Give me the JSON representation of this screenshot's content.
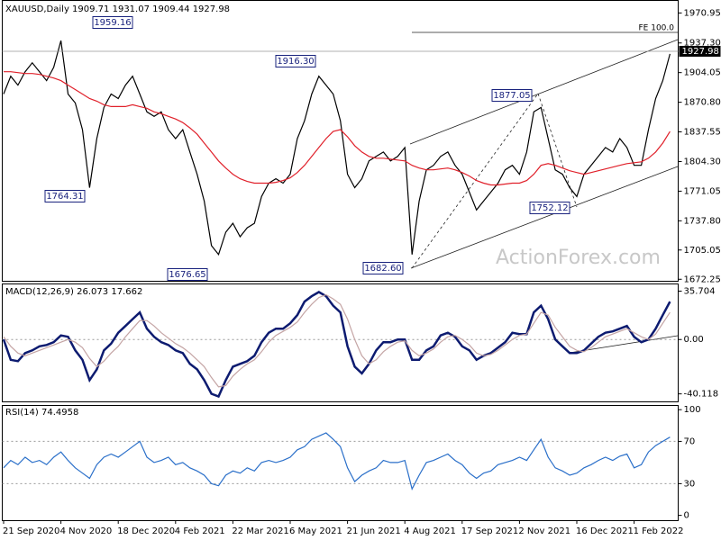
{
  "watermark": "ActionForex.com",
  "chart_data": [
    {
      "type": "line",
      "title": "XAUUSD,Daily",
      "ohlc": [
        1909.71,
        1931.07,
        1909.44,
        1927.98
      ],
      "ylim": [
        1670,
        1985
      ],
      "yticks": [
        1970.95,
        {
          "value": 1937.3,
          "label": "1937.30"
        },
        1904.05,
        {
          "value": 1870.8,
          "label": "1870.80"
        },
        1837.55,
        {
          "value": 1804.3,
          "label": "1804.30"
        },
        1771.05,
        {
          "value": 1737.8,
          "label": "1737.80"
        },
        1705.05,
        1672.25
      ],
      "annotations": [
        1959.16,
        1764.31,
        1676.65,
        {
          "value": 1916.3,
          "label": "1916.30"
        },
        {
          "value": 1682.6,
          "label": "1682.60"
        },
        1877.05,
        1752.12
      ],
      "fe_label": "FE 100.0",
      "series": [
        {
          "color": "#000000",
          "values": [
            1880,
            1900,
            1890,
            1905,
            1915,
            1905,
            1895,
            1910,
            1940,
            1880,
            1870,
            1840,
            1775,
            1830,
            1865,
            1880,
            1875,
            1890,
            1900,
            1880,
            1860,
            1855,
            1860,
            1840,
            1830,
            1840,
            1815,
            1790,
            1760,
            1710,
            1700,
            1725,
            1735,
            1720,
            1730,
            1735,
            1765,
            1780,
            1785,
            1780,
            1790,
            1830,
            1850,
            1880,
            1900,
            1890,
            1880,
            1850,
            1790,
            1775,
            1785,
            1805,
            1810,
            1815,
            1805,
            1810,
            1820,
            1700,
            1760,
            1795,
            1800,
            1810,
            1815,
            1800,
            1790,
            1770,
            1750,
            1760,
            1770,
            1780,
            1795,
            1800,
            1790,
            1815,
            1860,
            1865,
            1830,
            1795,
            1790,
            1775,
            1765,
            1790,
            1800,
            1810,
            1820,
            1815,
            1830,
            1820,
            1800,
            1800,
            1840,
            1875,
            1895,
            1925
          ]
        },
        {
          "color": "#e0202a",
          "values": [
            1905,
            1905,
            1904,
            1903,
            1903,
            1902,
            1900,
            1898,
            1895,
            1890,
            1885,
            1880,
            1875,
            1872,
            1868,
            1866,
            1866,
            1866,
            1868,
            1866,
            1864,
            1860,
            1858,
            1855,
            1852,
            1848,
            1842,
            1835,
            1825,
            1815,
            1805,
            1797,
            1790,
            1785,
            1782,
            1780,
            1780,
            1780,
            1781,
            1783,
            1786,
            1792,
            1800,
            1810,
            1820,
            1830,
            1838,
            1840,
            1832,
            1822,
            1815,
            1810,
            1808,
            1808,
            1807,
            1806,
            1805,
            1800,
            1797,
            1795,
            1795,
            1796,
            1797,
            1795,
            1792,
            1788,
            1783,
            1780,
            1778,
            1778,
            1779,
            1780,
            1780,
            1783,
            1790,
            1800,
            1802,
            1800,
            1797,
            1794,
            1792,
            1790,
            1792,
            1794,
            1796,
            1798,
            1800,
            1802,
            1803,
            1804,
            1808,
            1815,
            1825,
            1838
          ]
        }
      ]
    },
    {
      "type": "line",
      "title": "MACD(12,26,9)",
      "readings": [
        26.073,
        17.662
      ],
      "ylim": [
        -46,
        41
      ],
      "yticks": [
        35.704,
        {
          "value": 0,
          "label": "0.00"
        },
        -40.118
      ],
      "grid": "inner",
      "series": [
        {
          "color": "#0d1b70",
          "values": [
            0,
            -15,
            -16,
            -10,
            -8,
            -5,
            -4,
            -2,
            3,
            2,
            -8,
            -15,
            -30,
            -22,
            -8,
            -3,
            5,
            10,
            15,
            20,
            8,
            2,
            -2,
            -4,
            -8,
            -10,
            -18,
            -22,
            -30,
            -40,
            -42,
            -30,
            -20,
            -18,
            -16,
            -12,
            -2,
            5,
            8,
            8,
            12,
            18,
            28,
            32,
            35,
            32,
            25,
            20,
            -5,
            -20,
            -25,
            -18,
            -8,
            -2,
            -2,
            0,
            0,
            -15,
            -15,
            -8,
            -5,
            3,
            5,
            2,
            -5,
            -8,
            -15,
            -12,
            -10,
            -6,
            -2,
            5,
            4,
            4,
            20,
            25,
            15,
            0,
            -5,
            -10,
            -10,
            -8,
            -3,
            2,
            5,
            6,
            8,
            10,
            2,
            -2,
            0,
            8,
            18,
            28
          ]
        },
        {
          "color": "#c4a4a4",
          "values": [
            2,
            -5,
            -10,
            -12,
            -10,
            -8,
            -6,
            -4,
            -2,
            0,
            -2,
            -6,
            -14,
            -20,
            -16,
            -10,
            -5,
            2,
            8,
            14,
            14,
            10,
            5,
            1,
            -3,
            -6,
            -10,
            -15,
            -20,
            -28,
            -35,
            -34,
            -27,
            -22,
            -18,
            -15,
            -9,
            -2,
            3,
            6,
            9,
            13,
            20,
            26,
            31,
            33,
            30,
            26,
            15,
            0,
            -12,
            -18,
            -15,
            -9,
            -5,
            -2,
            -1,
            -8,
            -12,
            -10,
            -7,
            -2,
            2,
            3,
            0,
            -4,
            -10,
            -12,
            -11,
            -8,
            -4,
            0,
            3,
            4,
            12,
            20,
            18,
            9,
            2,
            -5,
            -8,
            -9,
            -6,
            -2,
            2,
            4,
            6,
            8,
            5,
            2,
            0,
            4,
            12,
            20
          ]
        }
      ]
    },
    {
      "type": "line",
      "title": "RSI(14)",
      "readings": [
        74.4958
      ],
      "ylim": [
        -5,
        104
      ],
      "yticks": [
        100,
        70,
        30,
        0
      ],
      "grid": "inner",
      "categories": [
        "21 Sep 2020",
        null,
        null,
        null,
        null,
        null,
        null,
        null,
        "4 Nov 2020",
        null,
        null,
        null,
        null,
        null,
        null,
        null,
        "18 Dec 2020",
        null,
        null,
        null,
        null,
        null,
        null,
        null,
        "4 Feb 2021",
        null,
        null,
        null,
        null,
        null,
        null,
        null,
        "22 Mar 2021",
        null,
        null,
        null,
        null,
        null,
        null,
        null,
        "6 May 2021",
        null,
        null,
        null,
        null,
        null,
        null,
        null,
        "21 Jun 2021",
        null,
        null,
        null,
        null,
        null,
        null,
        null,
        "4 Aug 2021",
        null,
        null,
        null,
        null,
        null,
        null,
        null,
        "17 Sep 2021",
        null,
        null,
        null,
        null,
        null,
        null,
        null,
        "2 Nov 2021",
        null,
        null,
        null,
        null,
        null,
        null,
        null,
        "16 Dec 2021",
        null,
        null,
        null,
        null,
        null,
        null,
        null,
        "1 Feb 2022",
        null,
        null,
        null,
        null,
        null
      ],
      "series": [
        {
          "color": "#2a6fc9",
          "values": [
            45,
            52,
            48,
            55,
            50,
            52,
            48,
            55,
            60,
            52,
            45,
            40,
            35,
            48,
            55,
            58,
            55,
            60,
            65,
            70,
            55,
            50,
            52,
            55,
            48,
            50,
            45,
            42,
            38,
            30,
            28,
            38,
            42,
            40,
            45,
            42,
            50,
            52,
            50,
            52,
            55,
            62,
            65,
            72,
            75,
            78,
            72,
            65,
            45,
            32,
            38,
            42,
            45,
            52,
            50,
            50,
            52,
            25,
            38,
            50,
            52,
            55,
            58,
            52,
            48,
            40,
            35,
            40,
            42,
            48,
            50,
            52,
            55,
            52,
            62,
            72,
            55,
            45,
            42,
            38,
            40,
            45,
            48,
            52,
            55,
            52,
            56,
            58,
            45,
            48,
            60,
            66,
            70,
            74
          ]
        }
      ]
    }
  ]
}
